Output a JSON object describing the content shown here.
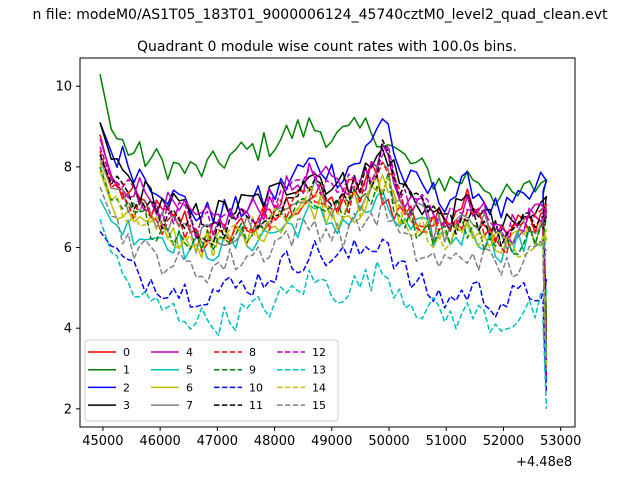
{
  "figure": {
    "suptitle": "n file: modeM0/AS1T05_183T01_9000006124_45740cztM0_level2_quad_clean.evt",
    "title": "Quadrant 0 module wise count rates with 100.0s bins.",
    "x_offset_label": "+4.48e8"
  },
  "chart_data": {
    "type": "line",
    "title": "Quadrant 0 module wise count rates with 100.0s bins.",
    "xlabel": "",
    "ylabel": "",
    "xlim": [
      44600,
      53250
    ],
    "ylim": [
      1.55,
      10.7
    ],
    "x_ticks": [
      45000,
      46000,
      47000,
      48000,
      49000,
      50000,
      51000,
      52000,
      53000
    ],
    "y_ticks": [
      2,
      4,
      6,
      8,
      10
    ],
    "x_range": [
      44950,
      52750
    ],
    "bin_seconds": 100,
    "n_points": 80,
    "legend": {
      "location": "lower left",
      "ncol": 4
    },
    "grid": false,
    "series": [
      {
        "name": "0",
        "color": "#ff0000",
        "dash": "solid",
        "shape": [
          8.8,
          7.6,
          7.3,
          7.1,
          7.0,
          6.8,
          6.6,
          6.7,
          6.3,
          6.4,
          6.3,
          6.6,
          6.5,
          6.6,
          6.7,
          7.0,
          7.1,
          7.3,
          7.2,
          7.0,
          7.4,
          7.5,
          7.9,
          7.2,
          6.9,
          6.9,
          6.6,
          6.6,
          6.8,
          7.2,
          7.4,
          6.7,
          6.3,
          6.4,
          6.6,
          6.7,
          6.9
        ]
      },
      {
        "name": "1",
        "color": "#008000",
        "dash": "solid",
        "shape": [
          10.3,
          8.8,
          8.5,
          8.3,
          8.2,
          8.1,
          8.0,
          7.9,
          7.9,
          8.0,
          8.2,
          8.3,
          8.4,
          8.5,
          8.6,
          8.8,
          8.9,
          9.0,
          8.9,
          8.7,
          8.8,
          8.9,
          9.0,
          8.6,
          8.3,
          8.1,
          7.9,
          7.7,
          7.6,
          7.7,
          7.8,
          7.6,
          7.3,
          7.2,
          7.3,
          7.5,
          7.7
        ]
      },
      {
        "name": "2",
        "color": "#0000ff",
        "dash": "solid",
        "shape": [
          9.1,
          8.3,
          8.2,
          7.9,
          7.7,
          7.5,
          7.2,
          7.1,
          6.8,
          6.8,
          6.9,
          6.9,
          7.1,
          7.2,
          7.3,
          7.6,
          7.9,
          8.1,
          8.0,
          7.8,
          8.0,
          8.2,
          8.6,
          9.5,
          7.9,
          7.6,
          7.5,
          7.3,
          7.2,
          7.4,
          7.6,
          7.2,
          6.9,
          6.9,
          7.1,
          7.3,
          7.8
        ]
      },
      {
        "name": "3",
        "color": "#000000",
        "dash": "solid",
        "shape": [
          9.1,
          8.1,
          7.8,
          7.4,
          7.3,
          7.1,
          7.1,
          6.8,
          6.8,
          6.8,
          6.9,
          7.0,
          7.1,
          7.2,
          7.3,
          7.5,
          7.7,
          7.9,
          7.7,
          7.5,
          7.6,
          7.8,
          8.0,
          8.5,
          7.7,
          7.3,
          7.1,
          6.8,
          6.7,
          6.9,
          7.2,
          6.8,
          6.4,
          6.5,
          6.6,
          6.8,
          7.1
        ]
      },
      {
        "name": "4",
        "color": "#bf00bf",
        "dash": "solid",
        "shape": [
          8.7,
          7.7,
          7.6,
          7.5,
          7.3,
          7.1,
          6.9,
          6.8,
          6.6,
          6.7,
          6.7,
          6.8,
          6.9,
          7.0,
          7.2,
          7.4,
          7.6,
          7.8,
          7.7,
          7.5,
          7.5,
          7.7,
          7.9,
          8.4,
          7.5,
          7.2,
          7.1,
          6.9,
          6.8,
          6.9,
          7.1,
          6.8,
          6.4,
          6.4,
          6.6,
          6.8,
          7.1
        ]
      },
      {
        "name": "5",
        "color": "#00bfbf",
        "dash": "solid",
        "shape": [
          7.2,
          6.6,
          6.5,
          6.4,
          6.3,
          6.3,
          6.2,
          6.0,
          5.9,
          6.0,
          6.0,
          6.1,
          6.2,
          6.3,
          6.4,
          6.5,
          6.6,
          6.8,
          6.7,
          6.6,
          6.7,
          6.8,
          7.0,
          7.1,
          6.6,
          6.4,
          6.4,
          6.3,
          6.2,
          6.3,
          6.5,
          6.2,
          6.0,
          6.0,
          6.1,
          6.2,
          6.3
        ]
      },
      {
        "name": "6",
        "color": "#bfbf00",
        "dash": "solid",
        "shape": [
          7.9,
          7.0,
          6.8,
          6.6,
          6.5,
          6.4,
          6.3,
          6.2,
          6.1,
          6.1,
          6.2,
          6.3,
          6.4,
          6.5,
          6.6,
          6.7,
          6.9,
          7.1,
          7.0,
          6.8,
          6.9,
          7.0,
          7.2,
          7.6,
          6.9,
          6.7,
          6.5,
          6.4,
          6.3,
          6.4,
          6.6,
          6.4,
          6.1,
          6.1,
          6.2,
          6.3,
          6.5
        ]
      },
      {
        "name": "7",
        "color": "#808080",
        "dash": "solid",
        "shape": [
          8.2,
          7.4,
          7.2,
          7.0,
          6.8,
          6.6,
          6.5,
          6.3,
          6.2,
          6.2,
          6.3,
          6.4,
          6.5,
          6.6,
          6.8,
          7.0,
          7.2,
          7.4,
          7.2,
          7.0,
          7.1,
          7.3,
          7.5,
          7.9,
          7.1,
          6.8,
          6.7,
          6.5,
          6.4,
          6.5,
          6.7,
          6.5,
          6.2,
          6.2,
          6.3,
          6.4,
          6.7
        ]
      },
      {
        "name": "8",
        "color": "#ff0000",
        "dash": "dashed",
        "shape": [
          8.4,
          7.4,
          7.1,
          6.9,
          6.8,
          6.6,
          6.5,
          6.4,
          6.2,
          6.3,
          6.4,
          6.5,
          6.6,
          6.7,
          6.8,
          7.0,
          7.1,
          7.3,
          7.2,
          7.0,
          7.1,
          7.3,
          7.6,
          8.0,
          7.2,
          6.9,
          6.7,
          6.6,
          6.5,
          6.6,
          6.8,
          6.5,
          6.2,
          6.2,
          6.4,
          6.5,
          6.8
        ]
      },
      {
        "name": "9",
        "color": "#008000",
        "dash": "dashed",
        "shape": [
          8.0,
          7.1,
          6.9,
          6.7,
          6.6,
          6.5,
          6.4,
          6.3,
          6.1,
          6.2,
          6.3,
          6.4,
          6.5,
          6.6,
          6.8,
          6.9,
          7.1,
          7.2,
          7.1,
          6.9,
          7.0,
          7.2,
          7.4,
          7.7,
          7.0,
          6.7,
          6.5,
          6.4,
          6.3,
          6.4,
          6.6,
          6.3,
          6.0,
          6.1,
          6.2,
          6.3,
          6.6
        ]
      },
      {
        "name": "10",
        "color": "#0000ff",
        "dash": "dashed",
        "shape": [
          6.4,
          6.0,
          5.6,
          5.3,
          5.2,
          5.1,
          5.0,
          4.9,
          4.9,
          4.9,
          5.0,
          5.0,
          5.1,
          5.2,
          5.4,
          5.6,
          5.7,
          5.9,
          5.8,
          5.7,
          5.8,
          5.9,
          6.1,
          6.3,
          5.6,
          5.2,
          5.0,
          4.8,
          4.7,
          4.8,
          5.0,
          4.8,
          4.6,
          4.7,
          4.8,
          4.9,
          5.0
        ]
      },
      {
        "name": "11",
        "color": "#000000",
        "dash": "dashed",
        "shape": [
          8.3,
          7.5,
          7.3,
          7.1,
          7.0,
          6.8,
          6.7,
          6.5,
          6.4,
          6.4,
          6.5,
          6.6,
          6.7,
          6.9,
          7.0,
          7.2,
          7.4,
          7.6,
          7.5,
          7.3,
          7.4,
          7.6,
          7.9,
          8.5,
          7.5,
          7.1,
          6.9,
          6.7,
          6.6,
          6.7,
          6.9,
          6.6,
          6.3,
          6.3,
          6.5,
          6.6,
          6.9
        ]
      },
      {
        "name": "12",
        "color": "#bf00bf",
        "dash": "dashed",
        "shape": [
          8.5,
          7.6,
          7.4,
          7.2,
          7.1,
          6.9,
          6.8,
          6.7,
          6.5,
          6.6,
          6.7,
          6.8,
          6.9,
          7.0,
          7.2,
          7.4,
          7.6,
          7.8,
          7.6,
          7.4,
          7.5,
          7.7,
          8.0,
          8.5,
          7.6,
          7.2,
          7.0,
          6.8,
          6.7,
          6.8,
          7.0,
          6.7,
          6.4,
          6.5,
          6.6,
          6.7,
          7.0
        ]
      },
      {
        "name": "13",
        "color": "#00bfbf",
        "dash": "dashed",
        "shape": [
          6.7,
          5.8,
          5.2,
          4.8,
          4.6,
          4.5,
          4.4,
          4.3,
          4.2,
          4.2,
          4.2,
          4.3,
          4.4,
          4.5,
          4.6,
          4.8,
          5.0,
          5.2,
          5.1,
          4.9,
          5.0,
          5.1,
          5.3,
          5.4,
          5.0,
          4.7,
          4.5,
          4.4,
          4.3,
          4.3,
          4.4,
          4.3,
          4.1,
          4.2,
          4.3,
          4.4,
          4.6
        ]
      },
      {
        "name": "14",
        "color": "#bfbf00",
        "dash": "dashed",
        "shape": [
          8.1,
          7.1,
          6.8,
          6.6,
          6.5,
          6.4,
          6.3,
          6.2,
          6.0,
          6.1,
          6.2,
          6.3,
          6.4,
          6.5,
          6.6,
          6.8,
          7.0,
          7.2,
          7.1,
          6.9,
          7.0,
          7.1,
          7.3,
          7.6,
          6.9,
          6.6,
          6.4,
          6.3,
          6.2,
          6.3,
          6.5,
          6.3,
          6.0,
          6.0,
          6.1,
          6.3,
          6.5
        ]
      },
      {
        "name": "15",
        "color": "#808080",
        "dash": "dashed",
        "shape": [
          7.5,
          6.7,
          6.3,
          6.0,
          5.8,
          5.7,
          5.6,
          5.5,
          5.4,
          5.5,
          5.6,
          5.7,
          5.8,
          5.9,
          6.1,
          6.3,
          6.4,
          6.6,
          6.5,
          6.3,
          6.4,
          6.6,
          6.8,
          7.0,
          6.3,
          6.0,
          5.8,
          5.7,
          5.6,
          5.7,
          5.9,
          5.7,
          5.5,
          5.5,
          5.6,
          5.8,
          6.0
        ]
      }
    ],
    "tail_drop_to": [
      3.9,
      4.2,
      2.7,
      3.3,
      3.1,
      2.7,
      3.4,
      3.6,
      3.7,
      3.5,
      2.4,
      3.2,
      2.8,
      2.0,
      3.0,
      3.3
    ]
  }
}
